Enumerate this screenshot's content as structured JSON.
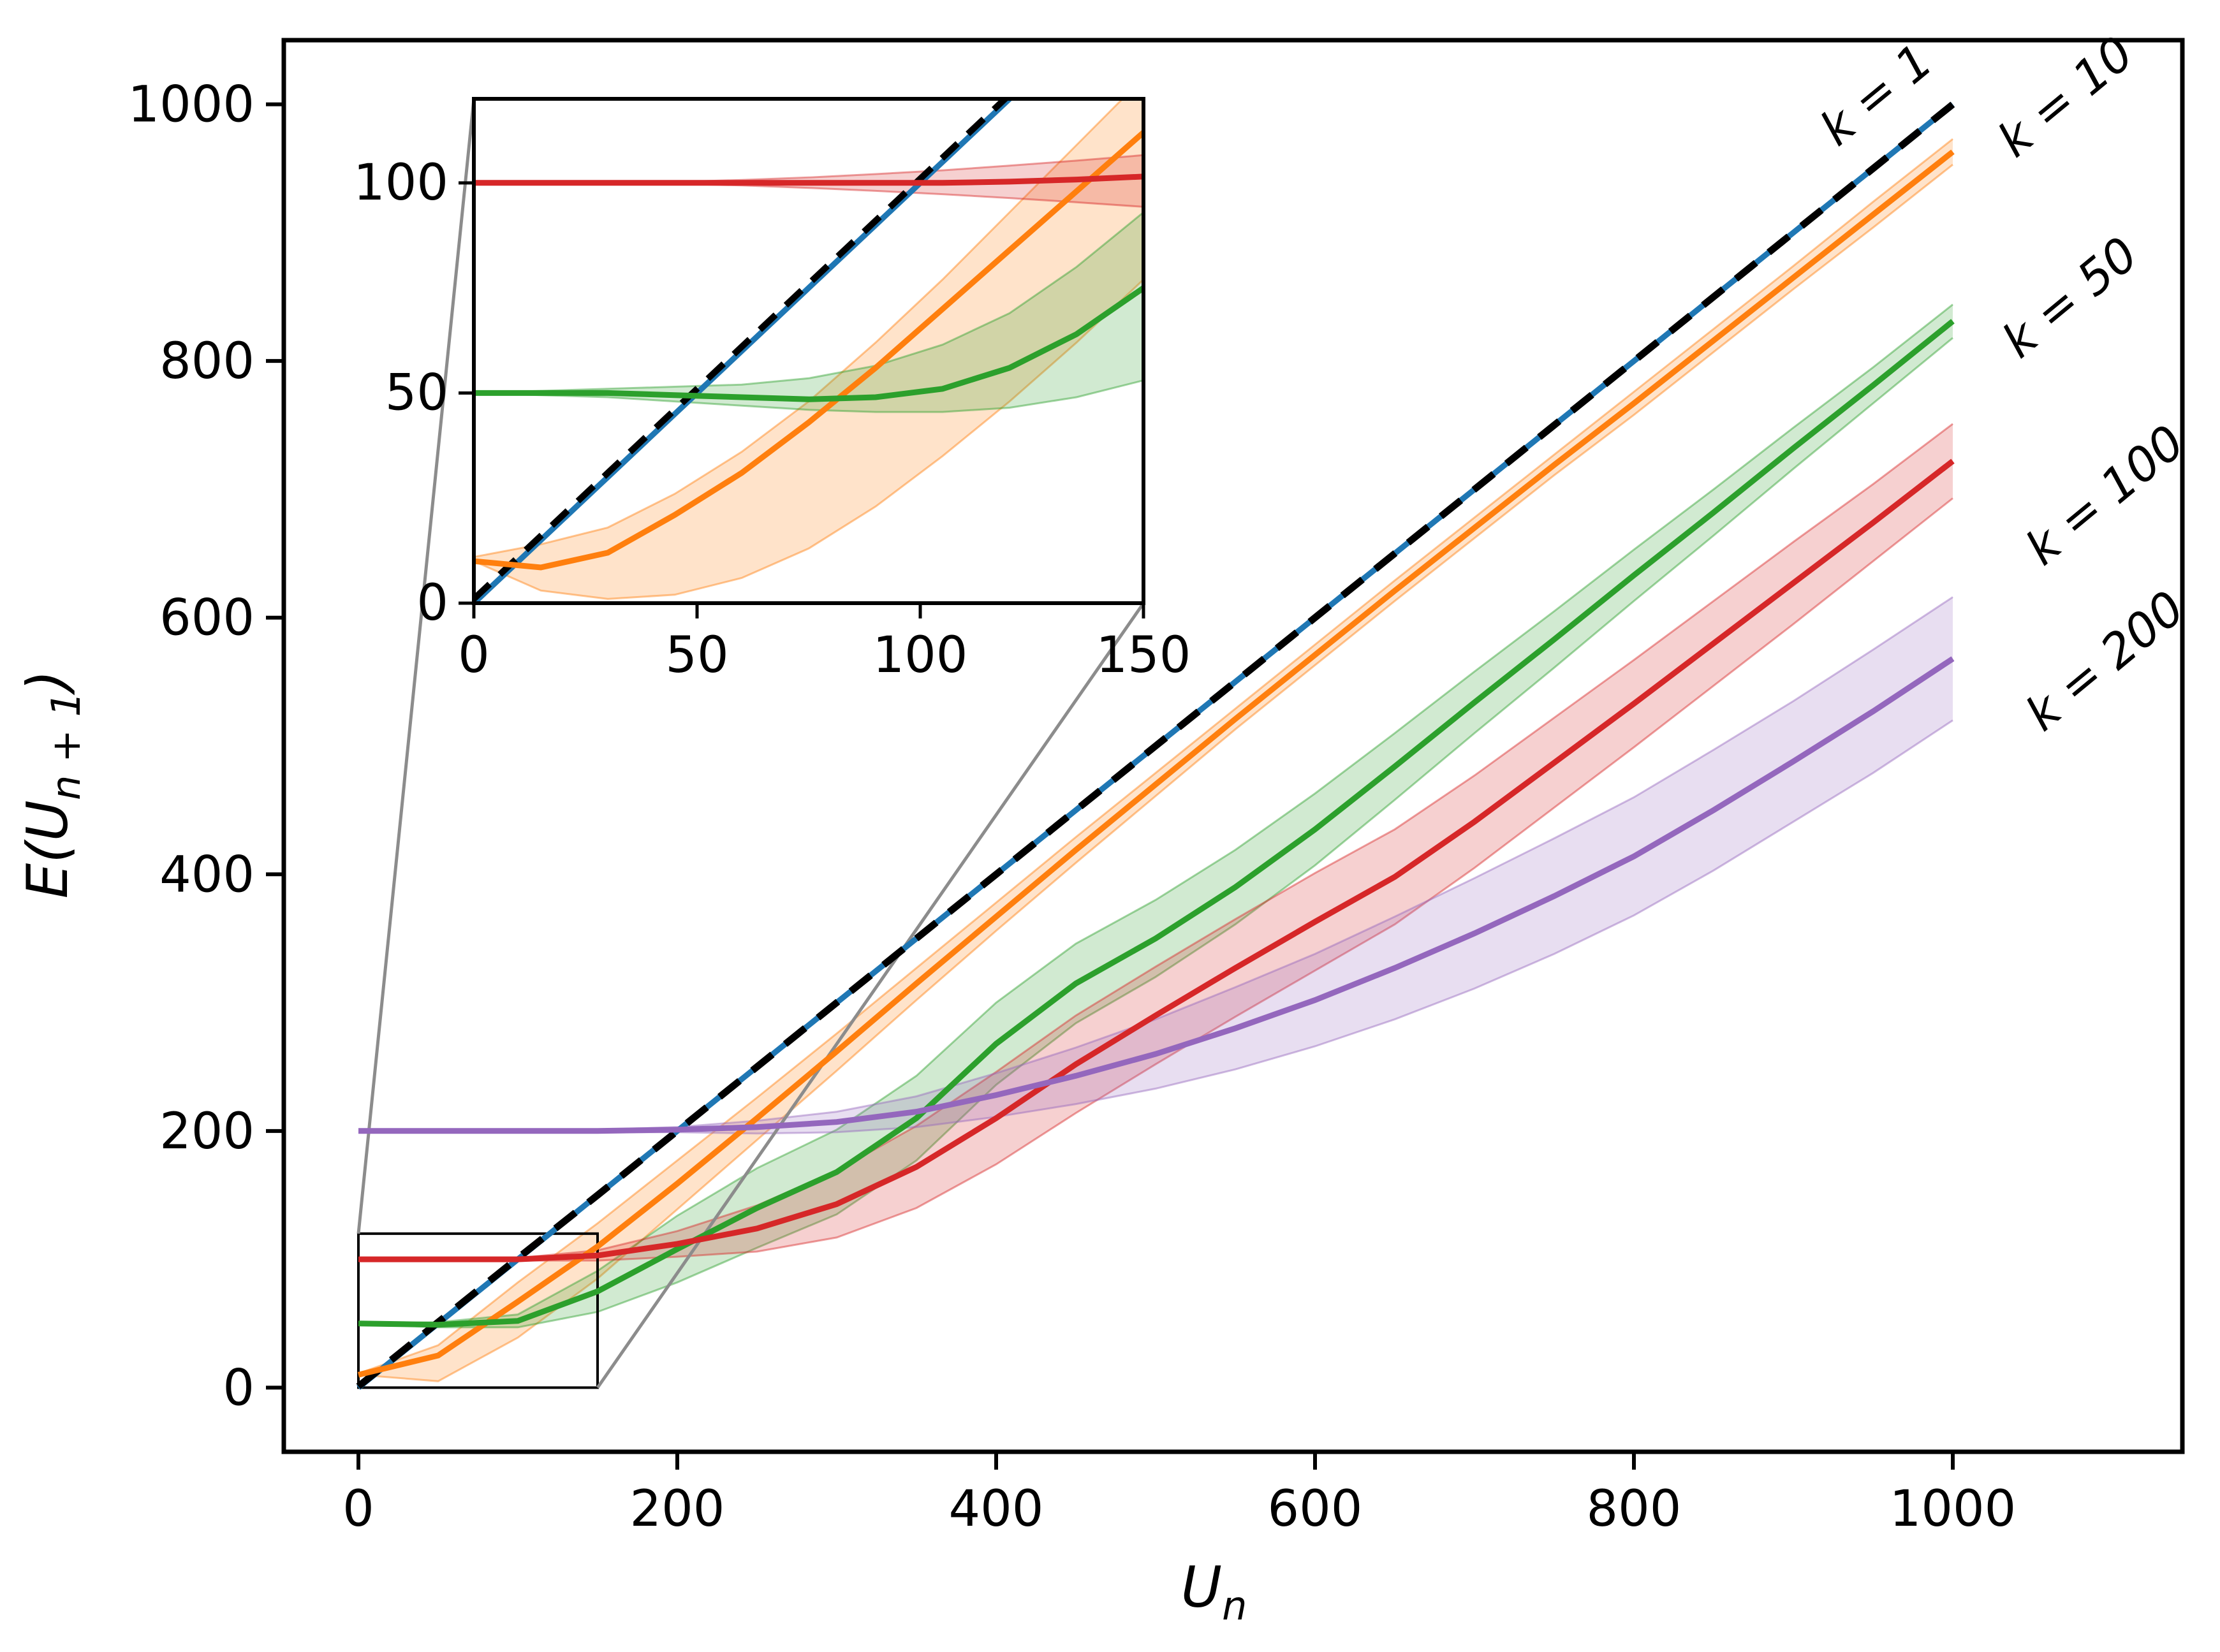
{
  "figure": {
    "background": "#ffffff"
  },
  "colors": {
    "identity_line": "#1f77b4",
    "k1_line": "#000000",
    "k10_line": "#ff7f0e",
    "k50_line": "#2ca02c",
    "k100_line": "#d62728",
    "k200_line": "#9467bd",
    "connector_gray": "#8c8c8c",
    "spine_black": "#000000"
  },
  "chart_data": {
    "type": "line",
    "title": "",
    "xlabel": {
      "main": "U",
      "subscript": "n"
    },
    "ylabel": {
      "prefix": "E(U",
      "subscript": "n + 1",
      "suffix": ")"
    },
    "main_axes": {
      "xlim": [
        -46.8,
        1144
      ],
      "ylim": [
        -50,
        1050
      ],
      "xticks": [
        0,
        200,
        400,
        600,
        800,
        1000
      ],
      "yticks": [
        0,
        200,
        400,
        600,
        800,
        1000
      ],
      "grid": false,
      "x": [
        0,
        50,
        100,
        150,
        200,
        250,
        300,
        350,
        400,
        450,
        500,
        550,
        600,
        650,
        700,
        750,
        800,
        850,
        900,
        950,
        1000
      ],
      "series": [
        {
          "name": "identity",
          "label": "",
          "color_key": "identity_line",
          "style": "solid",
          "y": [
            0,
            50,
            100,
            150,
            200,
            250,
            300,
            350,
            400,
            450,
            500,
            550,
            600,
            650,
            700,
            750,
            800,
            850,
            900,
            950,
            1000
          ]
        },
        {
          "name": "k1",
          "label": "k = 1",
          "color_key": "k1_line",
          "style": "dashed",
          "y": [
            1,
            51,
            101,
            150,
            200,
            250,
            300,
            350,
            400,
            450,
            500,
            550,
            600,
            650,
            700,
            750,
            800,
            850,
            900,
            950,
            1000
          ]
        },
        {
          "name": "k10",
          "label": "k = 10",
          "color_key": "k10_line",
          "style": "solid",
          "y": [
            10,
            25,
            67,
            110,
            159,
            210,
            262,
            315,
            367,
            419,
            470,
            521,
            571,
            621,
            670,
            719,
            767,
            816,
            865,
            914,
            963
          ],
          "lo": [
            10,
            5,
            39,
            85,
            139,
            193,
            247,
            302,
            356,
            409,
            461,
            513,
            563,
            613,
            662,
            711,
            758,
            807,
            856,
            904,
            953
          ],
          "hi": [
            11,
            33,
            82,
            128,
            177,
            226,
            276,
            327,
            378,
            429,
            479,
            529,
            579,
            629,
            678,
            727,
            776,
            825,
            874,
            924,
            973
          ]
        },
        {
          "name": "k50",
          "label": "k = 50",
          "color_key": "k50_line",
          "style": "solid",
          "y": [
            50,
            49,
            52,
            75,
            108,
            140,
            168,
            210,
            268,
            315,
            350,
            390,
            435,
            484,
            534,
            583,
            633,
            682,
            732,
            781,
            831
          ],
          "lo": [
            50,
            47,
            47,
            59,
            82,
            109,
            135,
            177,
            236,
            284,
            320,
            361,
            407,
            458,
            510,
            561,
            613,
            664,
            716,
            767,
            818
          ],
          "hi": [
            50,
            51,
            57,
            91,
            134,
            171,
            201,
            243,
            300,
            346,
            380,
            419,
            463,
            510,
            558,
            605,
            653,
            700,
            748,
            795,
            844
          ]
        },
        {
          "name": "k100",
          "label": "k = 100",
          "color_key": "k100_line",
          "style": "solid",
          "y": [
            100,
            100,
            100,
            103,
            112,
            124,
            143,
            172,
            210,
            252,
            290,
            327,
            363,
            398,
            441,
            487,
            533,
            580,
            627,
            674,
            722
          ],
          "lo": [
            100,
            100,
            99,
            99,
            102,
            106,
            117,
            140,
            174,
            214,
            252,
            289,
            325,
            361,
            405,
            452,
            499,
            547,
            595,
            644,
            693
          ],
          "hi": [
            100,
            100,
            101,
            107,
            122,
            142,
            169,
            204,
            246,
            290,
            328,
            365,
            401,
            435,
            477,
            522,
            567,
            613,
            659,
            704,
            751
          ]
        },
        {
          "name": "k200",
          "label": "k = 200",
          "color_key": "k200_line",
          "style": "solid",
          "y": [
            200,
            200,
            200,
            200,
            201,
            203,
            207,
            215,
            228,
            243,
            260,
            280,
            302,
            327,
            354,
            383,
            414,
            450,
            488,
            527,
            568
          ],
          "lo": [
            200,
            200,
            200,
            199,
            199,
            198,
            199,
            203,
            211,
            221,
            233,
            248,
            266,
            287,
            311,
            338,
            368,
            403,
            441,
            479,
            520
          ],
          "hi": [
            200,
            200,
            200,
            201,
            203,
            208,
            215,
            227,
            245,
            265,
            287,
            312,
            338,
            367,
            397,
            428,
            460,
            497,
            535,
            575,
            616
          ]
        }
      ]
    },
    "inset_axes": {
      "xlim": [
        0,
        150
      ],
      "ylim": [
        0,
        120
      ],
      "xticks": [
        0,
        50,
        100,
        150
      ],
      "yticks": [
        0,
        50,
        100
      ],
      "grid": false,
      "x": [
        0,
        15,
        30,
        45,
        60,
        75,
        90,
        105,
        120,
        135,
        150
      ],
      "series": [
        {
          "name": "identity",
          "color_key": "identity_line",
          "style": "solid",
          "y": [
            0,
            15,
            30,
            45,
            60,
            75,
            90,
            105,
            120,
            135,
            150
          ]
        },
        {
          "name": "k1",
          "color_key": "k1_line",
          "style": "dashed",
          "y": [
            1,
            16,
            31,
            46,
            61,
            76,
            91,
            106,
            121,
            136,
            151
          ]
        },
        {
          "name": "k10",
          "color_key": "k10_line",
          "style": "solid",
          "y": [
            10,
            8.5,
            12,
            21,
            31,
            43,
            56,
            70,
            84,
            98,
            112
          ],
          "lo": [
            10,
            3,
            1,
            2,
            6,
            13,
            23,
            35,
            48,
            62,
            77
          ],
          "hi": [
            11,
            14,
            18,
            26,
            36,
            48,
            62,
            77,
            93,
            109,
            125
          ]
        },
        {
          "name": "k50",
          "color_key": "k50_line",
          "style": "solid",
          "y": [
            50,
            50,
            50,
            49.5,
            49,
            48.5,
            49,
            51,
            56,
            64,
            75
          ],
          "lo": [
            50,
            49.5,
            49,
            48,
            47,
            46,
            45.5,
            45.5,
            46.5,
            49,
            53
          ],
          "hi": [
            50,
            50.5,
            51,
            51.5,
            52,
            53.5,
            56.5,
            61.5,
            69,
            80,
            93
          ]
        },
        {
          "name": "k100",
          "color_key": "k100_line",
          "style": "solid",
          "y": [
            100,
            100,
            100,
            100,
            100,
            100,
            100,
            100,
            100.3,
            100.8,
            101.5
          ],
          "lo": [
            100,
            100,
            100,
            99.8,
            99.4,
            98.8,
            98.1,
            97.3,
            96.4,
            95.4,
            94.3
          ],
          "hi": [
            100,
            100,
            100,
            100.2,
            100.7,
            101.3,
            102.1,
            103,
            104.1,
            105.3,
            106.6
          ]
        }
      ]
    },
    "zoom_region": {
      "x": [
        0,
        150
      ],
      "y": [
        0,
        120
      ]
    },
    "legend_position": "inline-end-labels"
  }
}
